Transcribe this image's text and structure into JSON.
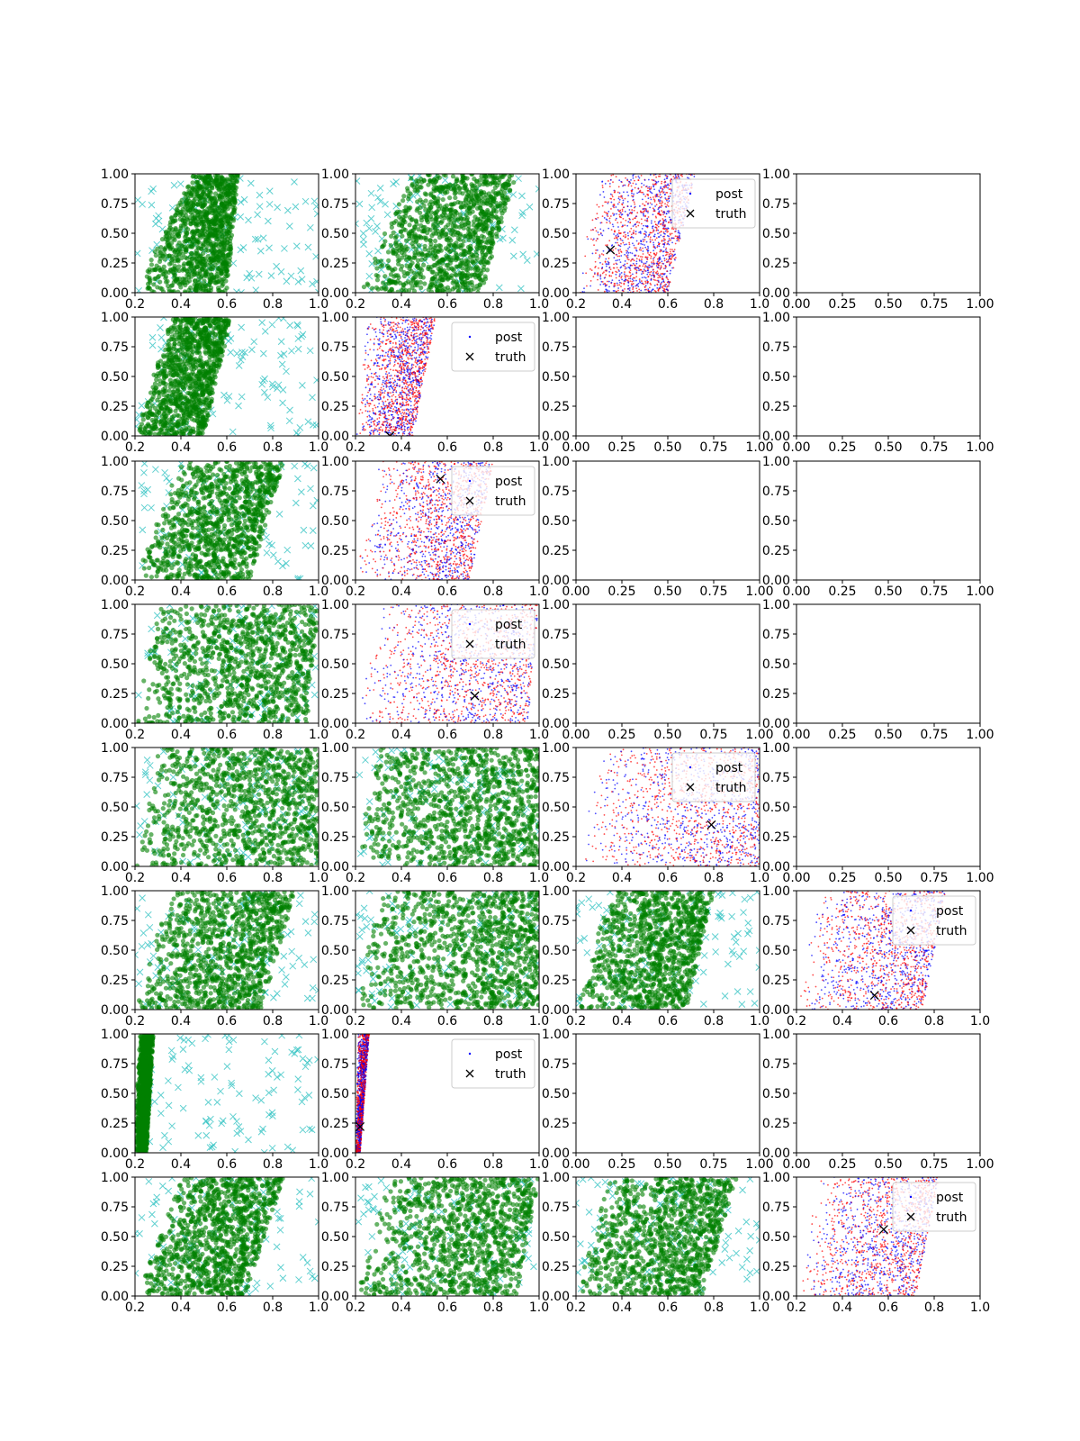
{
  "colors": {
    "prior_points": "#008000",
    "prior_markers": "#2bc0c0",
    "post_red": "#ff0000",
    "post_blue": "#0000ff",
    "truth": "#000000",
    "axes": "#000000"
  },
  "legend": {
    "post_label": "post",
    "truth_label": "truth"
  },
  "tick_labels": {
    "x_data": [
      "0.2",
      "0.4",
      "0.6",
      "0.8",
      "1.0"
    ],
    "x_empty": [
      "0.00",
      "0.25",
      "0.50",
      "0.75",
      "1.00"
    ],
    "y": [
      "0.00",
      "0.25",
      "0.50",
      "0.75",
      "1.00"
    ]
  },
  "chart_data": {
    "type": "scatter",
    "grid": false,
    "layout": "8 rows x 4 columns of subplots",
    "series_names": [
      "post",
      "truth"
    ],
    "panels": [
      {
        "row": 1,
        "col": 1,
        "kind": "prior",
        "x_band": [
          0.2,
          0.6,
          0.45,
          0.65
        ],
        "xlim": [
          0.2,
          1.0
        ],
        "ylim": [
          0,
          1
        ]
      },
      {
        "row": 1,
        "col": 2,
        "kind": "prior",
        "x_band": [
          0.2,
          0.75,
          0.45,
          0.9
        ],
        "xlim": [
          0.2,
          1.0
        ],
        "ylim": [
          0,
          1
        ]
      },
      {
        "row": 1,
        "col": 3,
        "kind": "posterior",
        "x_band": [
          0.2,
          0.6,
          0.3,
          0.72
        ],
        "truth": [
          0.35,
          0.36
        ],
        "legend": "upper right",
        "xlim": [
          0.2,
          1.0
        ],
        "ylim": [
          0,
          1
        ]
      },
      {
        "row": 1,
        "col": 4,
        "kind": "empty",
        "xlim": [
          0,
          1
        ],
        "ylim": [
          0,
          1
        ]
      },
      {
        "row": 2,
        "col": 1,
        "kind": "prior",
        "x_band": [
          0.2,
          0.5,
          0.35,
          0.62
        ],
        "xlim": [
          0.2,
          1.0
        ],
        "ylim": [
          0,
          1
        ]
      },
      {
        "row": 2,
        "col": 2,
        "kind": "posterior",
        "x_band": [
          0.2,
          0.45,
          0.25,
          0.55
        ],
        "truth": [
          0.35,
          0.0
        ],
        "legend": "upper right",
        "xlim": [
          0.2,
          1.0
        ],
        "ylim": [
          0,
          1
        ]
      },
      {
        "row": 2,
        "col": 3,
        "kind": "empty",
        "xlim": [
          0,
          1
        ],
        "ylim": [
          0,
          1
        ]
      },
      {
        "row": 2,
        "col": 4,
        "kind": "empty",
        "xlim": [
          0,
          1
        ],
        "ylim": [
          0,
          1
        ]
      },
      {
        "row": 3,
        "col": 1,
        "kind": "prior",
        "x_band": [
          0.2,
          0.7,
          0.4,
          0.85
        ],
        "xlim": [
          0.2,
          1.0
        ],
        "ylim": [
          0,
          1
        ]
      },
      {
        "row": 3,
        "col": 2,
        "kind": "posterior",
        "x_band": [
          0.2,
          0.7,
          0.3,
          0.8
        ],
        "truth": [
          0.57,
          0.85
        ],
        "legend": "upper right",
        "xlim": [
          0.2,
          1.0
        ],
        "ylim": [
          0,
          1
        ]
      },
      {
        "row": 3,
        "col": 3,
        "kind": "empty",
        "xlim": [
          0,
          1
        ],
        "ylim": [
          0,
          1
        ]
      },
      {
        "row": 3,
        "col": 4,
        "kind": "empty",
        "xlim": [
          0,
          1
        ],
        "ylim": [
          0,
          1
        ]
      },
      {
        "row": 4,
        "col": 1,
        "kind": "prior",
        "x_band": [
          0.2,
          0.95,
          0.3,
          1.0
        ],
        "xlim": [
          0.2,
          1.0
        ],
        "ylim": [
          0,
          1
        ]
      },
      {
        "row": 4,
        "col": 2,
        "kind": "posterior",
        "x_band": [
          0.2,
          0.95,
          0.3,
          1.0
        ],
        "truth": [
          0.72,
          0.23
        ],
        "legend": "upper right",
        "xlim": [
          0.2,
          1.0
        ],
        "ylim": [
          0,
          1
        ]
      },
      {
        "row": 4,
        "col": 3,
        "kind": "empty",
        "xlim": [
          0,
          1
        ],
        "ylim": [
          0,
          1
        ]
      },
      {
        "row": 4,
        "col": 4,
        "kind": "empty",
        "xlim": [
          0,
          1
        ],
        "ylim": [
          0,
          1
        ]
      },
      {
        "row": 5,
        "col": 1,
        "kind": "prior",
        "x_band": [
          0.2,
          1.0,
          0.3,
          1.0
        ],
        "xlim": [
          0.2,
          1.0
        ],
        "ylim": [
          0,
          1
        ]
      },
      {
        "row": 5,
        "col": 2,
        "kind": "prior",
        "x_band": [
          0.2,
          1.0,
          0.3,
          1.0
        ],
        "xlim": [
          0.2,
          1.0
        ],
        "ylim": [
          0,
          1
        ]
      },
      {
        "row": 5,
        "col": 3,
        "kind": "posterior",
        "x_band": [
          0.2,
          1.0,
          0.3,
          1.0
        ],
        "truth": [
          0.79,
          0.35
        ],
        "legend": "upper right",
        "xlim": [
          0.2,
          1.0
        ],
        "ylim": [
          0,
          1
        ]
      },
      {
        "row": 5,
        "col": 4,
        "kind": "empty",
        "xlim": [
          0,
          1
        ],
        "ylim": [
          0,
          1
        ]
      },
      {
        "row": 6,
        "col": 1,
        "kind": "prior",
        "x_band": [
          0.2,
          0.75,
          0.35,
          0.9
        ],
        "xlim": [
          0.2,
          1.0
        ],
        "ylim": [
          0,
          1
        ]
      },
      {
        "row": 6,
        "col": 2,
        "kind": "prior",
        "x_band": [
          0.2,
          1.0,
          0.3,
          1.0
        ],
        "xlim": [
          0.2,
          1.0
        ],
        "ylim": [
          0,
          1
        ]
      },
      {
        "row": 6,
        "col": 3,
        "kind": "prior",
        "x_band": [
          0.2,
          0.68,
          0.35,
          0.8
        ],
        "xlim": [
          0.2,
          1.0
        ],
        "ylim": [
          0,
          1
        ]
      },
      {
        "row": 6,
        "col": 4,
        "kind": "posterior",
        "x_band": [
          0.2,
          0.75,
          0.3,
          0.85
        ],
        "truth": [
          0.54,
          0.12
        ],
        "legend": "upper right",
        "xlim": [
          0.2,
          1.0
        ],
        "ylim": [
          0,
          1
        ]
      },
      {
        "row": 7,
        "col": 1,
        "kind": "prior",
        "x_band": [
          0.2,
          0.25,
          0.22,
          0.28
        ],
        "xlim": [
          0.2,
          1.0
        ],
        "ylim": [
          0,
          1
        ]
      },
      {
        "row": 7,
        "col": 2,
        "kind": "posterior",
        "x_band": [
          0.2,
          0.22,
          0.21,
          0.26
        ],
        "truth": [
          0.22,
          0.22
        ],
        "legend": "upper right",
        "xlim": [
          0.2,
          1.0
        ],
        "ylim": [
          0,
          1
        ]
      },
      {
        "row": 7,
        "col": 3,
        "kind": "empty",
        "xlim": [
          0,
          1
        ],
        "ylim": [
          0,
          1
        ]
      },
      {
        "row": 7,
        "col": 4,
        "kind": "empty",
        "xlim": [
          0,
          1
        ],
        "ylim": [
          0,
          1
        ]
      },
      {
        "row": 8,
        "col": 1,
        "kind": "prior",
        "x_band": [
          0.2,
          0.68,
          0.4,
          0.85
        ],
        "xlim": [
          0.2,
          1.0
        ],
        "ylim": [
          0,
          1
        ]
      },
      {
        "row": 8,
        "col": 2,
        "kind": "prior",
        "x_band": [
          0.2,
          0.9,
          0.35,
          1.0
        ],
        "xlim": [
          0.2,
          1.0
        ],
        "ylim": [
          0,
          1
        ]
      },
      {
        "row": 8,
        "col": 3,
        "kind": "prior",
        "x_band": [
          0.2,
          0.75,
          0.35,
          0.9
        ],
        "xlim": [
          0.2,
          1.0
        ],
        "ylim": [
          0,
          1
        ]
      },
      {
        "row": 8,
        "col": 4,
        "kind": "posterior",
        "x_band": [
          0.2,
          0.72,
          0.3,
          0.82
        ],
        "truth": [
          0.58,
          0.56
        ],
        "legend": "upper right",
        "xlim": [
          0.2,
          1.0
        ],
        "ylim": [
          0,
          1
        ]
      }
    ]
  }
}
